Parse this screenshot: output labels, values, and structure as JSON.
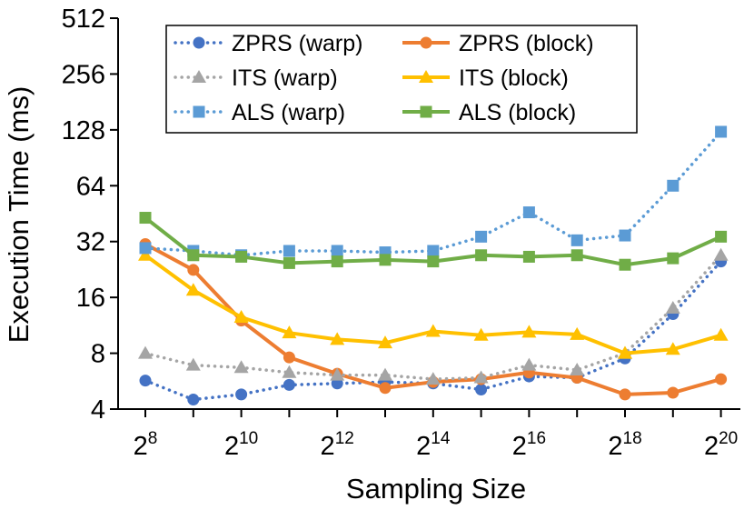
{
  "chart_data": {
    "type": "line",
    "title": "",
    "xlabel": "Sampling Size",
    "ylabel": "Execution Time (ms)",
    "y_scale": "log2",
    "ylim": [
      4,
      512
    ],
    "y_ticks": [
      4,
      8,
      16,
      32,
      64,
      128,
      256,
      512
    ],
    "y_tick_labels": [
      "4",
      "8",
      "16",
      "32",
      "64",
      "128",
      "256",
      "512"
    ],
    "x_exponents": [
      8,
      9,
      10,
      11,
      12,
      13,
      14,
      15,
      16,
      17,
      18,
      19,
      20
    ],
    "x_tick_labels": [
      {
        "base": "2",
        "exp": "8"
      },
      {
        "base": "2",
        "exp": "10"
      },
      {
        "base": "2",
        "exp": "12"
      },
      {
        "base": "2",
        "exp": "14"
      },
      {
        "base": "2",
        "exp": "16"
      },
      {
        "base": "2",
        "exp": "18"
      },
      {
        "base": "2",
        "exp": "20"
      }
    ],
    "legend_position": "top",
    "series": [
      {
        "name": "ZPRS (warp)",
        "color": "#4472C4",
        "line": "dotted",
        "marker": "circle",
        "values": [
          5.7,
          4.5,
          4.8,
          5.4,
          5.5,
          5.6,
          5.5,
          5.1,
          6.0,
          5.9,
          7.5,
          13.0,
          25.0
        ]
      },
      {
        "name": "ZPRS (block)",
        "color": "#ED7D31",
        "line": "solid",
        "marker": "circle",
        "values": [
          31.0,
          22.5,
          12.0,
          7.6,
          6.2,
          5.2,
          5.6,
          5.8,
          6.3,
          5.9,
          4.8,
          4.9,
          5.8
        ]
      },
      {
        "name": "ITS (warp)",
        "color": "#A5A5A5",
        "line": "dotted",
        "marker": "triangle",
        "values": [
          8.0,
          6.9,
          6.7,
          6.3,
          6.1,
          6.1,
          5.8,
          5.9,
          6.9,
          6.5,
          8.0,
          14.0,
          27.0
        ]
      },
      {
        "name": "ITS (block)",
        "color": "#FFC000",
        "line": "solid",
        "marker": "triangle",
        "values": [
          27.0,
          17.5,
          12.5,
          10.3,
          9.5,
          9.1,
          10.5,
          10.0,
          10.4,
          10.1,
          8.0,
          8.4,
          10.0
        ]
      },
      {
        "name": "ALS (warp)",
        "color": "#5B9BD5",
        "line": "dotted",
        "marker": "square",
        "values": [
          29.5,
          28.5,
          27.0,
          28.5,
          28.5,
          28.0,
          28.5,
          34.0,
          46.0,
          32.5,
          34.5,
          64.0,
          125.0
        ]
      },
      {
        "name": "ALS (block)",
        "color": "#70AD47",
        "line": "solid",
        "marker": "square",
        "values": [
          43.0,
          27.0,
          26.5,
          24.5,
          25.0,
          25.5,
          25.0,
          27.0,
          26.5,
          27.0,
          24.0,
          26.0,
          34.0
        ]
      }
    ]
  }
}
